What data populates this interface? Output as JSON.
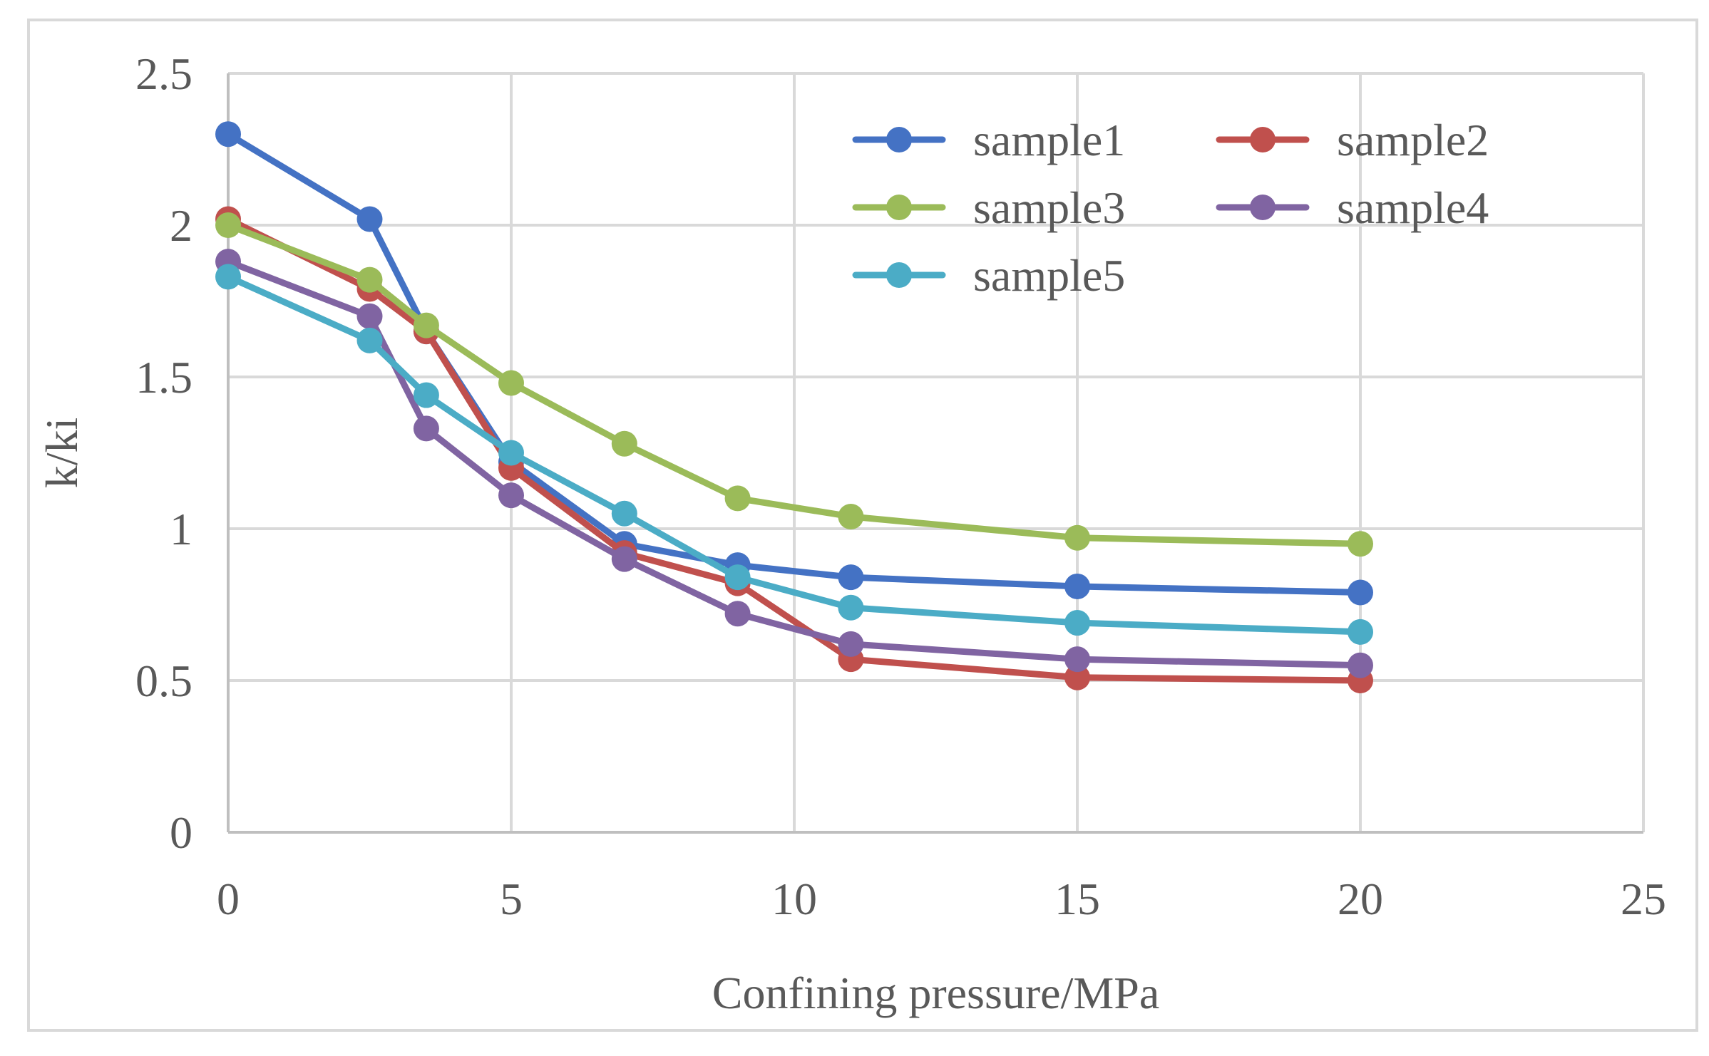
{
  "chart_data": {
    "type": "line",
    "title": "",
    "xlabel": "Confining pressure/MPa",
    "ylabel": "k/ki",
    "xlim": [
      0,
      25
    ],
    "ylim": [
      0,
      2.5
    ],
    "xticks": [
      0,
      5,
      10,
      15,
      20,
      25
    ],
    "yticks": [
      0,
      0.5,
      1,
      1.5,
      2,
      2.5
    ],
    "xtick_labels": [
      "0",
      "5",
      "10",
      "15",
      "20",
      "25"
    ],
    "ytick_labels": [
      "0",
      "0.5",
      "1",
      "1.5",
      "2",
      "2.5"
    ],
    "grid": true,
    "legend_position": "top-right",
    "x": [
      0,
      2.5,
      3.5,
      5,
      7,
      9,
      11,
      15,
      20
    ],
    "series": [
      {
        "name": "sample1",
        "color": "#4472C4",
        "values": [
          2.3,
          2.02,
          1.65,
          1.22,
          0.95,
          0.88,
          0.84,
          0.81,
          0.79
        ]
      },
      {
        "name": "sample2",
        "color": "#C0504D",
        "values": [
          2.02,
          1.79,
          1.65,
          1.2,
          0.92,
          0.82,
          0.57,
          0.51,
          0.5
        ]
      },
      {
        "name": "sample3",
        "color": "#9BBB59",
        "values": [
          2.0,
          1.82,
          1.67,
          1.48,
          1.28,
          1.1,
          1.04,
          0.97,
          0.95
        ]
      },
      {
        "name": "sample4",
        "color": "#8064A2",
        "values": [
          1.88,
          1.7,
          1.33,
          1.11,
          0.9,
          0.72,
          0.62,
          0.57,
          0.55
        ]
      },
      {
        "name": "sample5",
        "color": "#4BACC6",
        "values": [
          1.83,
          1.62,
          1.44,
          1.25,
          1.05,
          0.84,
          0.74,
          0.69,
          0.66
        ]
      }
    ]
  }
}
